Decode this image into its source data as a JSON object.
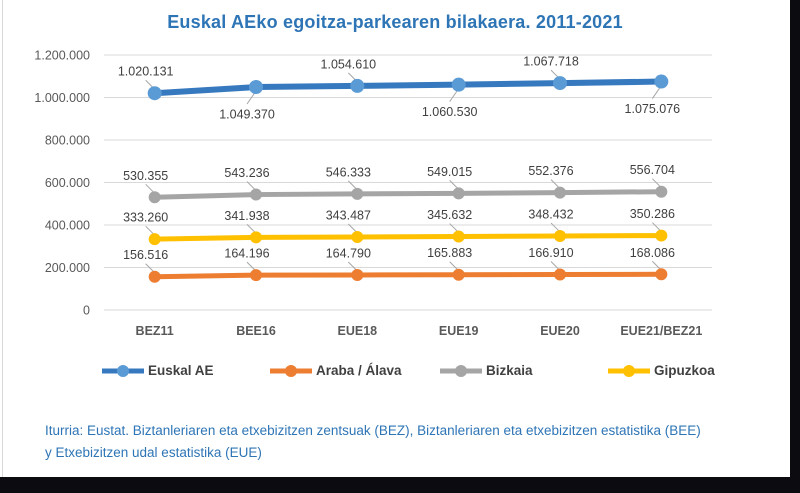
{
  "title": "Euskal AEko egoitza-parkearen bilakaera. 2011-2021",
  "footer": {
    "line1": "Iturria: Eustat. Biztanleriaren eta etxebizitzen zentsuak (BEZ), Biztanleriaren eta etxebizitzen estatistika (BEE)",
    "line2": "y Etxebizitzen udal estatistika (EUE)"
  },
  "colors": {
    "title_blue": "#2e75b6",
    "axis_text": "#595959",
    "data_label_text": "#404040",
    "gridline": "#d9d9d9",
    "leader_line": "#a6a6a6",
    "frame_dark": "#0c0c10"
  },
  "chart_data": {
    "type": "line",
    "title": "Euskal AEko egoitza-parkearen bilakaera. 2011-2021",
    "categories": [
      "BEZ11",
      "BEE16",
      "EUE18",
      "EUE19",
      "EUE20",
      "EUE21/BEZ21"
    ],
    "series": [
      {
        "name": "Euskal AE",
        "line_color": "#3779be",
        "marker_color": "#5b9bd5",
        "values": [
          1020131,
          1049370,
          1054610,
          1060530,
          1067718,
          1075076
        ],
        "labels": [
          "1.020.131",
          "1.049.370",
          "1.054.610",
          "1.060.530",
          "1.067.718",
          "1.075.076"
        ],
        "label_pos": [
          "above",
          "below",
          "above",
          "below",
          "above",
          "below"
        ]
      },
      {
        "name": "Araba / Álava",
        "line_color": "#ed7d31",
        "marker_color": "#ed7d31",
        "values": [
          156516,
          164196,
          164790,
          165883,
          166910,
          168086
        ],
        "labels": [
          "156.516",
          "164.196",
          "164.790",
          "165.883",
          "166.910",
          "168.086"
        ],
        "label_pos": [
          "above",
          "above",
          "above",
          "above",
          "above",
          "above"
        ]
      },
      {
        "name": "Bizkaia",
        "line_color": "#a5a5a5",
        "marker_color": "#a5a5a5",
        "values": [
          530355,
          543236,
          546333,
          549015,
          552376,
          556704
        ],
        "labels": [
          "530.355",
          "543.236",
          "546.333",
          "549.015",
          "552.376",
          "556.704"
        ],
        "label_pos": [
          "above",
          "above",
          "above",
          "above",
          "above",
          "above"
        ]
      },
      {
        "name": "Gipuzkoa",
        "line_color": "#ffc000",
        "marker_color": "#ffc000",
        "values": [
          333260,
          341938,
          343487,
          345632,
          348432,
          350286
        ],
        "labels": [
          "333.260",
          "341.938",
          "343.487",
          "345.632",
          "348.432",
          "350.286"
        ],
        "label_pos": [
          "above",
          "above",
          "above",
          "above",
          "above",
          "above"
        ]
      }
    ],
    "y_ticks": [
      {
        "value": 0,
        "label": "0"
      },
      {
        "value": 200000,
        "label": "200.000"
      },
      {
        "value": 400000,
        "label": "400.000"
      },
      {
        "value": 600000,
        "label": "600.000"
      },
      {
        "value": 800000,
        "label": "800.000"
      },
      {
        "value": 1000000,
        "label": "1.000.000"
      },
      {
        "value": 1200000,
        "label": "1.200.000"
      }
    ],
    "ylim": [
      0,
      1200000
    ],
    "grid": true,
    "legend_position": "bottom",
    "legend_order": [
      "Euskal AE",
      "Araba / Álava",
      "Bizkaia",
      "Gipuzkoa"
    ]
  }
}
